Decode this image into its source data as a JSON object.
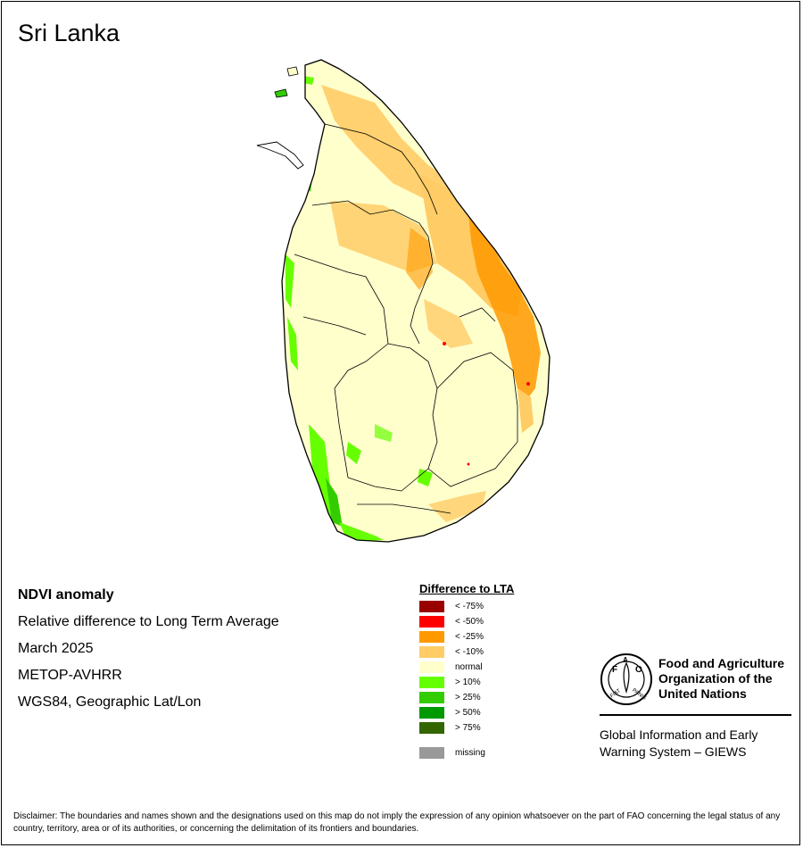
{
  "title": "Sri Lanka",
  "info": {
    "line1": "NDVI anomaly",
    "line2": "Relative difference to Long Term Average",
    "line3": "March 2025",
    "line4": "METOP-AVHRR",
    "line5": "WGS84, Geographic Lat/Lon"
  },
  "legend": {
    "title": "Difference to LTA",
    "items": [
      {
        "label": "< -75%",
        "color": "#990000"
      },
      {
        "label": "< -50%",
        "color": "#ff0000"
      },
      {
        "label": "< -25%",
        "color": "#ff9900"
      },
      {
        "label": "< -10%",
        "color": "#ffcc66"
      },
      {
        "label": "normal",
        "color": "#ffffcc"
      },
      {
        "label": "> 10%",
        "color": "#66ff00"
      },
      {
        "label": "> 25%",
        "color": "#33cc00"
      },
      {
        "label": "> 50%",
        "color": "#009900"
      },
      {
        "label": "> 75%",
        "color": "#336600"
      },
      {
        "label": "missing",
        "color": "#999999"
      }
    ]
  },
  "fao": {
    "name_line1": "Food and Agriculture",
    "name_line2": "Organization of the",
    "name_line3": "United Nations",
    "logo_text": "FAO",
    "logo_motto": "FIAT PANIS",
    "giews_line1": "Global Information and Early",
    "giews_line2": "Warning System – GIEWS"
  },
  "disclaimer": "Disclaimer: The boundaries and names shown and the designations used on this map do not imply the expression of any opinion whatsoever on the part of FAO concerning the legal status of any country, territory, area or of its authorities, or concerning the delimitation of its frontiers and boundaries.",
  "map_colors": {
    "normal": "#ffffcc",
    "light_decline": "#ffcc66",
    "moderate_decline": "#ff9900",
    "severe_decline": "#ff0000",
    "light_increase": "#66ff00",
    "moderate_increase": "#33cc00",
    "strong_increase": "#009900",
    "very_strong_increase": "#336600"
  }
}
